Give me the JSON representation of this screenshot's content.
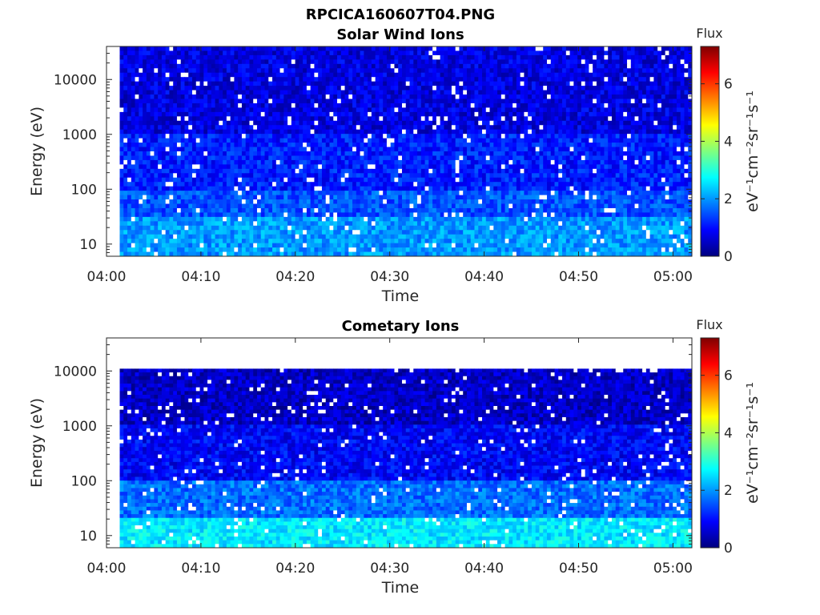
{
  "figure_title": "RPCICA160607T04.PNG",
  "colormap": [
    "#00007f",
    "#0000ff",
    "#007fff",
    "#00ffff",
    "#7fff7f",
    "#ffff00",
    "#ff7f00",
    "#ff0000",
    "#7f0000"
  ],
  "chart_data": [
    {
      "type": "heatmap",
      "title": "Solar Wind Ions",
      "xlabel": "Time",
      "ylabel": "Energy (eV)",
      "x_tick_labels": [
        "04:00",
        "04:10",
        "04:20",
        "04:30",
        "04:40",
        "04:50",
        "05:00"
      ],
      "xlim_minutes": [
        0,
        62
      ],
      "data_x_start_minutes": 1.4,
      "y_scale": "log",
      "ylim": [
        6,
        40000
      ],
      "y_ticks": [
        10,
        100,
        1000,
        10000
      ],
      "y_tick_labels": [
        "10",
        "100",
        "1000",
        "10000"
      ],
      "data_y_top": 40000,
      "colorbar": {
        "title": "Flux",
        "label": "eV⁻¹cm⁻²sr⁻¹s⁻¹",
        "range": [
          0,
          7.3
        ],
        "ticks": [
          0,
          2,
          4,
          6
        ],
        "tick_labels": [
          "0",
          "2",
          "4",
          "6"
        ]
      },
      "levels": [
        {
          "energy_max": 30,
          "flux": 2.0
        },
        {
          "energy_max": 100,
          "flux": 1.5
        },
        {
          "energy_max": 1000,
          "flux": 1.1
        },
        {
          "energy_max": 40000,
          "flux": 0.7
        }
      ]
    },
    {
      "type": "heatmap",
      "title": "Cometary Ions",
      "xlabel": "Time",
      "ylabel": "Energy (eV)",
      "x_tick_labels": [
        "04:00",
        "04:10",
        "04:20",
        "04:30",
        "04:40",
        "04:50",
        "05:00"
      ],
      "xlim_minutes": [
        0,
        62
      ],
      "data_x_start_minutes": 1.4,
      "y_scale": "log",
      "ylim": [
        6,
        40000
      ],
      "y_ticks": [
        10,
        100,
        1000,
        10000
      ],
      "y_tick_labels": [
        "10",
        "100",
        "1000",
        "10000"
      ],
      "data_y_top": 11000,
      "colorbar": {
        "title": "Flux",
        "label": "eV⁻¹cm⁻²sr⁻¹s⁻¹",
        "range": [
          0,
          7.3
        ],
        "ticks": [
          0,
          2,
          4,
          6
        ],
        "tick_labels": [
          "0",
          "2",
          "4",
          "6"
        ]
      },
      "levels": [
        {
          "energy_max": 22,
          "flux": 2.6
        },
        {
          "energy_max": 100,
          "flux": 1.7
        },
        {
          "energy_max": 1000,
          "flux": 0.9
        },
        {
          "energy_max": 11000,
          "flux": 0.5
        }
      ]
    }
  ]
}
